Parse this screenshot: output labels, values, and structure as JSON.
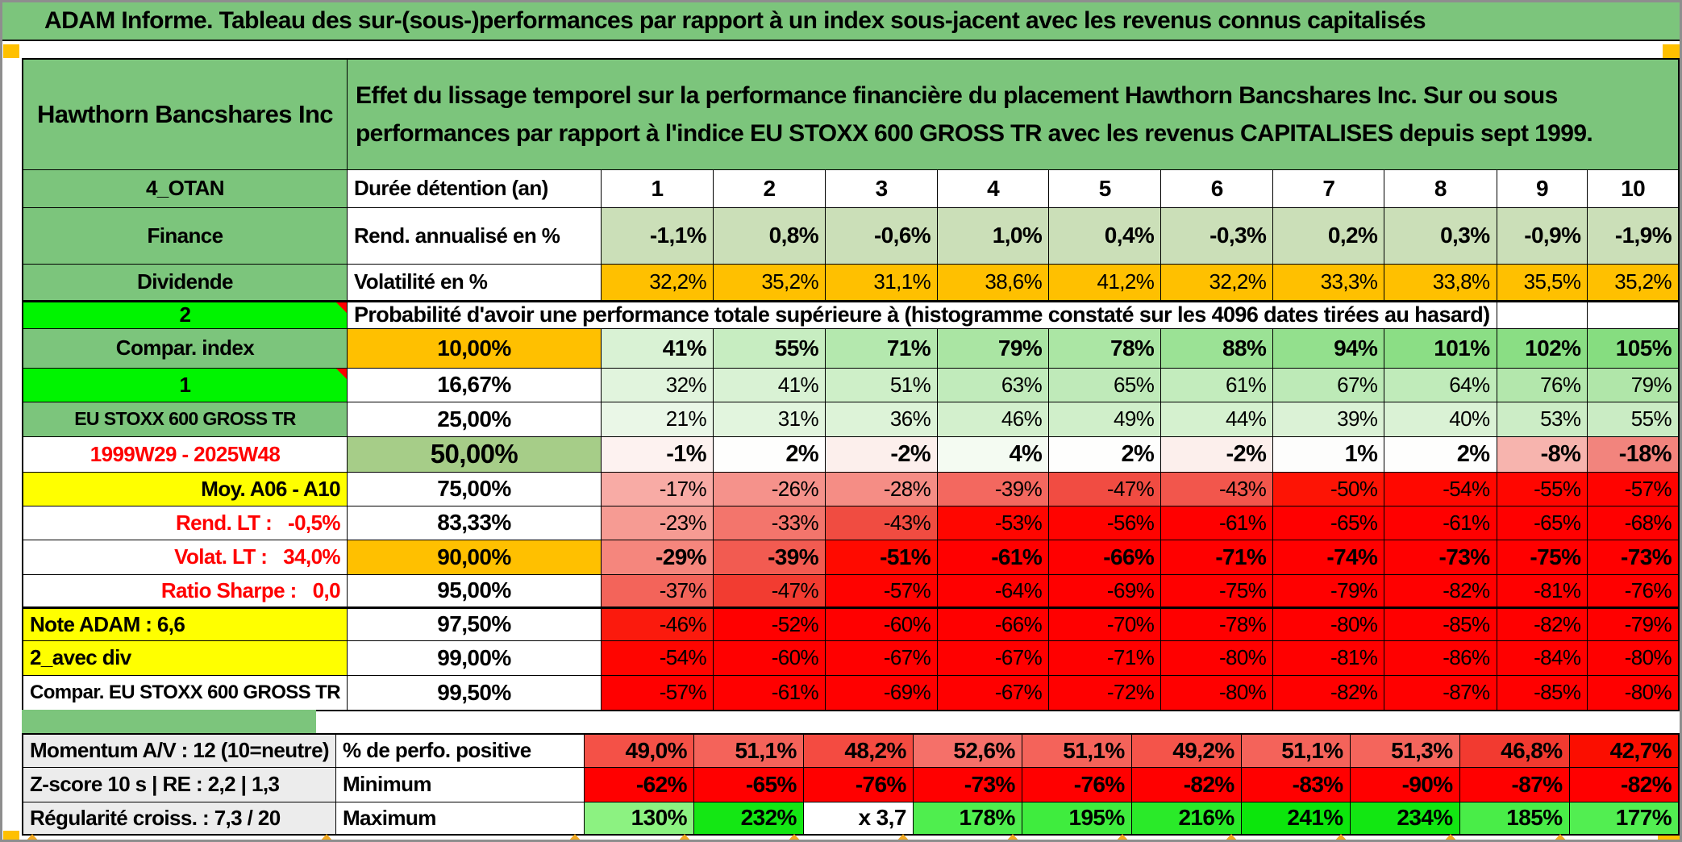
{
  "title": "ADAM Informe. Tableau des sur-(sous-)performances par rapport à un index sous-jacent avec les revenus connus capitalisés",
  "header": {
    "company": "Hawthorn Bancshares Inc",
    "description": "Effet du lissage temporel sur la performance financière du placement Hawthorn Bancshares Inc. Sur ou sous performances par rapport à l'indice EU STOXX 600 GROSS TR avec les revenus CAPITALISES depuis sept 1999."
  },
  "colors": {
    "green_header": "#7cc57c",
    "green_bright": "#00f400",
    "green_50cell": "#a6cd88",
    "green_rend_row": "#cbdfb8",
    "orange": "#ffc000",
    "orange_marker": "#f0a822",
    "yellow": "#ffff00",
    "gray_label": "#ececec",
    "red_full": "#ff0000",
    "red_text": "#ff0000",
    "white": "#ffffff"
  },
  "table": {
    "probability_title": "Probabilité d'avoir une performance totale supérieure à (histogramme constaté sur les 4096 dates tirées au hasard)",
    "rows": [
      {
        "key": "duree",
        "label1": {
          "t": "4_OTAN",
          "bg": "#7cc57c",
          "al": "c",
          "fw": 700
        },
        "label2": {
          "t": "Durée détention (an)",
          "bg": "#ffffff",
          "al": "l",
          "fw": 700
        },
        "values": [
          "1",
          "2",
          "3",
          "4",
          "5",
          "6",
          "7",
          "8",
          "9",
          "10"
        ],
        "value_bgs": [
          "#ffffff",
          "#ffffff",
          "#ffffff",
          "#ffffff",
          "#ffffff",
          "#ffffff",
          "#ffffff",
          "#ffffff",
          "#ffffff",
          "#ffffff"
        ],
        "val_fw": 700,
        "val_al": "c",
        "val_fs": 28
      },
      {
        "key": "rend",
        "label1": {
          "t": "Finance",
          "bg": "#7cc57c",
          "al": "c",
          "fw": 700
        },
        "label2": {
          "t": "Rend. annualisé en %",
          "bg": "#ffffff",
          "al": "l",
          "fw": 700
        },
        "values": [
          "-1,1%",
          "0,8%",
          "-0,6%",
          "1,0%",
          "0,4%",
          "-0,3%",
          "0,2%",
          "0,3%",
          "-0,9%",
          "-1,9%"
        ],
        "value_bgs": [
          "#cbdfb8",
          "#cbdfb8",
          "#cbdfb8",
          "#cbdfb8",
          "#cbdfb8",
          "#cbdfb8",
          "#cbdfb8",
          "#cbdfb8",
          "#cbdfb8",
          "#cbdfb8"
        ],
        "val_fw": 700,
        "val_al": "r",
        "val_fs": 28
      },
      {
        "key": "volat",
        "label1": {
          "t": "Dividende",
          "bg": "#7cc57c",
          "al": "c",
          "fw": 700
        },
        "label2": {
          "t": "Volatilité en %",
          "bg": "#ffffff",
          "al": "l",
          "fw": 700
        },
        "values": [
          "32,2%",
          "35,2%",
          "31,1%",
          "38,6%",
          "41,2%",
          "32,2%",
          "33,3%",
          "33,8%",
          "35,5%",
          "35,2%"
        ],
        "value_bgs": [
          "#ffc000",
          "#ffc000",
          "#ffc000",
          "#ffc000",
          "#ffc000",
          "#ffc000",
          "#ffc000",
          "#ffc000",
          "#ffc000",
          "#ffc000"
        ],
        "val_fw": 400,
        "val_al": "r",
        "val_fs": 26
      },
      {
        "key": "proba",
        "label1": {
          "t": "2",
          "bg": "#00f400",
          "al": "c",
          "fw": 700,
          "marker": true
        },
        "merged": true,
        "trailing": 2
      },
      {
        "key": "p10",
        "label1": {
          "t": "Compar. index",
          "bg": "#7cc57c",
          "al": "c",
          "fw": 700
        },
        "label2": {
          "t": "10,00%",
          "bg": "#ffc000",
          "al": "c",
          "fw": 700,
          "fs": 28
        },
        "values": [
          "41%",
          "55%",
          "71%",
          "79%",
          "78%",
          "88%",
          "94%",
          "101%",
          "102%",
          "105%"
        ],
        "value_bgs": [
          "#d9f2d4",
          "#c7edc1",
          "#b4e8ae",
          "#aae5a3",
          "#abe6a4",
          "#9be295",
          "#93e08d",
          "#8bde85",
          "#8ade84",
          "#86dd80"
        ],
        "val_fw": 700,
        "val_al": "r",
        "val_fs": 28
      },
      {
        "key": "p1667",
        "label1": {
          "t": "1",
          "bg": "#00f400",
          "al": "c",
          "fw": 700,
          "marker": true
        },
        "label2": {
          "t": "16,67%",
          "bg": "#ffffff",
          "al": "c",
          "fw": 700,
          "fs": 28
        },
        "values": [
          "32%",
          "41%",
          "51%",
          "63%",
          "65%",
          "61%",
          "67%",
          "64%",
          "76%",
          "79%"
        ],
        "value_bgs": [
          "#e1f4dd",
          "#d9f2d4",
          "#ceefc8",
          "#c1ebbb",
          "#bfeab9",
          "#c3ecbd",
          "#bdeab7",
          "#c0ebba",
          "#b3e7ac",
          "#b0e6a9"
        ],
        "val_fw": 400,
        "val_al": "r",
        "val_fs": 26
      },
      {
        "key": "p25",
        "label1": {
          "t": "EU STOXX 600 GROSS TR",
          "bg": "#7cc57c",
          "al": "c",
          "fw": 700,
          "fs": 23
        },
        "label2": {
          "t": "25,00%",
          "bg": "#ffffff",
          "al": "c",
          "fw": 700,
          "fs": 28
        },
        "values": [
          "21%",
          "31%",
          "36%",
          "46%",
          "49%",
          "44%",
          "39%",
          "40%",
          "53%",
          "55%"
        ],
        "value_bgs": [
          "#eaf7e7",
          "#e2f5de",
          "#ddf3d8",
          "#d3f0cd",
          "#d0efca",
          "#d5f1cf",
          "#dbf2d6",
          "#daf2d5",
          "#ccedc6",
          "#caecc4"
        ],
        "val_fw": 400,
        "val_al": "r",
        "val_fs": 26
      },
      {
        "key": "p50",
        "label1": {
          "t": "1999W29 - 2025W48",
          "bg": "#ffffff",
          "al": "c",
          "fw": 700,
          "fg": "#ff0000"
        },
        "label2": {
          "t": "50,00%",
          "bg": "#a6cd88",
          "al": "c",
          "fw": 700,
          "fs": 33
        },
        "values": [
          "-1%",
          "2%",
          "-2%",
          "4%",
          "2%",
          "-2%",
          "1%",
          "2%",
          "-8%",
          "-18%"
        ],
        "value_bgs": [
          "#fdf2f0",
          "#fefefd",
          "#fcefec",
          "#f4fbf2",
          "#fefefd",
          "#fcefec",
          "#fdfdfc",
          "#fefefd",
          "#f7b4ae",
          "#f2847d"
        ],
        "val_fw": 700,
        "val_al": "r",
        "val_fs": 29
      },
      {
        "key": "p75",
        "label1": {
          "t": "Moy. A06 - A10",
          "bg": "#ffff00",
          "al": "r",
          "fw": 700
        },
        "label2": {
          "t": "75,00%",
          "bg": "#ffffff",
          "al": "c",
          "fw": 700,
          "fs": 28
        },
        "values": [
          "-17%",
          "-26%",
          "-28%",
          "-39%",
          "-47%",
          "-43%",
          "-50%",
          "-54%",
          "-55%",
          "-57%"
        ],
        "value_bgs": [
          "#f8aba5",
          "#f5928b",
          "#f58d85",
          "#f3685f",
          "#f14c42",
          "#f2564c",
          "#fd1405",
          "#ff0800",
          "#ff0600",
          "#ff0300"
        ],
        "val_fw": 400,
        "val_al": "r",
        "val_fs": 26
      },
      {
        "key": "p8333",
        "label1": {
          "t": "Rend. LT :   -0,5%",
          "bg": "#ffffff",
          "al": "r",
          "fw": 700,
          "fg": "#ff0000"
        },
        "label2": {
          "t": "83,33%",
          "bg": "#ffffff",
          "al": "c",
          "fw": 700,
          "fs": 28
        },
        "values": [
          "-23%",
          "-33%",
          "-43%",
          "-53%",
          "-56%",
          "-61%",
          "-65%",
          "-61%",
          "-65%",
          "-68%"
        ],
        "value_bgs": [
          "#f69b93",
          "#f3756c",
          "#f04c41",
          "#ff0600",
          "#ff0300",
          "#ff0000",
          "#ff0000",
          "#ff0000",
          "#ff0000",
          "#ff0000"
        ],
        "val_fw": 400,
        "val_al": "r",
        "val_fs": 26
      },
      {
        "key": "p90",
        "label1": {
          "t": "Volat. LT :   34,0%",
          "bg": "#ffffff",
          "al": "r",
          "fw": 700,
          "fg": "#ff0000"
        },
        "label2": {
          "t": "90,00%",
          "bg": "#ffc000",
          "al": "c",
          "fw": 700,
          "fs": 28
        },
        "values": [
          "-29%",
          "-39%",
          "-51%",
          "-61%",
          "-66%",
          "-71%",
          "-74%",
          "-73%",
          "-75%",
          "-73%"
        ],
        "value_bgs": [
          "#f5867d",
          "#f25b51",
          "#ff0a00",
          "#ff0000",
          "#ff0000",
          "#ff0000",
          "#ff0000",
          "#ff0000",
          "#ff0000",
          "#ff0000"
        ],
        "val_fw": 700,
        "val_al": "r",
        "val_fs": 28
      },
      {
        "key": "p95",
        "label1": {
          "t": "Ratio Sharpe :   0,0",
          "bg": "#ffffff",
          "al": "r",
          "fw": 700,
          "fg": "#ff0000"
        },
        "label2": {
          "t": "95,00%",
          "bg": "#ffffff",
          "al": "c",
          "fw": 700,
          "fs": 28
        },
        "values": [
          "-37%",
          "-47%",
          "-57%",
          "-64%",
          "-69%",
          "-75%",
          "-79%",
          "-82%",
          "-81%",
          "-76%"
        ],
        "value_bgs": [
          "#f3645a",
          "#f23c31",
          "#ff0200",
          "#ff0000",
          "#ff0000",
          "#ff0000",
          "#ff0000",
          "#ff0000",
          "#ff0000",
          "#ff0000"
        ],
        "val_fw": 400,
        "val_al": "r",
        "val_fs": 26
      },
      {
        "key": "p975",
        "label1": {
          "t": "Note ADAM : 6,6",
          "bg": "#ffff00",
          "al": "l",
          "fw": 700
        },
        "label2": {
          "t": "97,50%",
          "bg": "#ffffff",
          "al": "c",
          "fw": 700,
          "fs": 28
        },
        "values": [
          "-46%",
          "-52%",
          "-60%",
          "-66%",
          "-70%",
          "-78%",
          "-80%",
          "-85%",
          "-82%",
          "-79%"
        ],
        "value_bgs": [
          "#fb1a0d",
          "#ff0000",
          "#ff0000",
          "#ff0000",
          "#ff0000",
          "#ff0000",
          "#ff0000",
          "#ff0000",
          "#ff0000",
          "#ff0000"
        ],
        "val_fw": 400,
        "val_al": "r",
        "val_fs": 26
      },
      {
        "key": "p99",
        "label1": {
          "t": "2_avec div",
          "bg": "#ffff00",
          "al": "l",
          "fw": 700
        },
        "label2": {
          "t": "99,00%",
          "bg": "#ffffff",
          "al": "c",
          "fw": 700,
          "fs": 28
        },
        "values": [
          "-54%",
          "-60%",
          "-67%",
          "-67%",
          "-71%",
          "-80%",
          "-81%",
          "-86%",
          "-84%",
          "-80%"
        ],
        "value_bgs": [
          "#ff0500",
          "#ff0000",
          "#ff0000",
          "#ff0000",
          "#ff0000",
          "#ff0000",
          "#ff0000",
          "#ff0000",
          "#ff0000",
          "#ff0000"
        ],
        "val_fw": 400,
        "val_al": "r",
        "val_fs": 26
      },
      {
        "key": "p995",
        "label1": {
          "t": "Compar. EU STOXX 600 GROSS TR",
          "bg": "#ffffff",
          "al": "c",
          "fw": 700,
          "fs": 24
        },
        "label2": {
          "t": "99,50%",
          "bg": "#ffffff",
          "al": "c",
          "fw": 700,
          "fs": 28
        },
        "values": [
          "-57%",
          "-61%",
          "-69%",
          "-67%",
          "-72%",
          "-80%",
          "-82%",
          "-87%",
          "-85%",
          "-80%"
        ],
        "value_bgs": [
          "#ff0000",
          "#ff0000",
          "#ff0000",
          "#ff0000",
          "#ff0000",
          "#ff0000",
          "#ff0000",
          "#ff0000",
          "#ff0000",
          "#ff0000"
        ],
        "val_fw": 400,
        "val_al": "r",
        "val_fs": 26
      }
    ],
    "bottom_rows": [
      {
        "key": "perfo",
        "label1": {
          "t": "Momentum A/V : 12 (10=neutre)",
          "bg": "#ececec",
          "al": "l",
          "fw": 700
        },
        "label2": {
          "t": "% de perfo. positive",
          "bg": "#ffffff",
          "al": "l",
          "fw": 700
        },
        "values": [
          "49,0%",
          "51,1%",
          "48,2%",
          "52,6%",
          "51,1%",
          "49,2%",
          "51,1%",
          "51,3%",
          "46,8%",
          "42,7%"
        ],
        "value_bgs": [
          "#f45147",
          "#f4635a",
          "#f44b41",
          "#f57069",
          "#f4635a",
          "#f4544a",
          "#f4635a",
          "#f4655c",
          "#f23a30",
          "#fb0e00"
        ],
        "val_fw": 700,
        "val_al": "r",
        "val_fs": 28
      },
      {
        "key": "min",
        "label1": {
          "t": "Z-score 10 s | RE : 2,2 | 1,3",
          "bg": "#ececec",
          "al": "l",
          "fw": 700
        },
        "label2": {
          "t": "Minimum",
          "bg": "#ffffff",
          "al": "l",
          "fw": 700
        },
        "values": [
          "-62%",
          "-65%",
          "-76%",
          "-73%",
          "-76%",
          "-82%",
          "-83%",
          "-90%",
          "-87%",
          "-82%"
        ],
        "value_bgs": [
          "#ff0000",
          "#ff0000",
          "#ff0000",
          "#ff0000",
          "#ff0000",
          "#ff0000",
          "#ff0000",
          "#ff0000",
          "#ff0000",
          "#ff0000"
        ],
        "val_fw": 700,
        "val_al": "r",
        "val_fs": 28
      },
      {
        "key": "max",
        "label1": {
          "t": "Régularité croiss. : 7,3 / 20",
          "bg": "#ececec",
          "al": "l",
          "fw": 700
        },
        "label2": {
          "t": "Maximum",
          "bg": "#ffffff",
          "al": "l",
          "fw": 700
        },
        "values": [
          "130%",
          "232%",
          "x 3,7",
          "178%",
          "195%",
          "216%",
          "241%",
          "234%",
          "185%",
          "177%"
        ],
        "value_bgs": [
          "#8cf281",
          "#14e714",
          "#ffffff",
          "#4fee4e",
          "#3fec3e",
          "#2aea29",
          "#0ce60c",
          "#12e712",
          "#49ed48",
          "#52ee51"
        ],
        "val_fw": 700,
        "val_al": "r",
        "val_fs": 28
      }
    ]
  }
}
